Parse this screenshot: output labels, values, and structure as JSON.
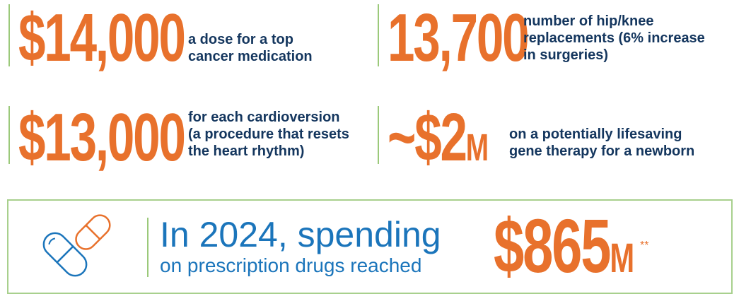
{
  "stats": [
    {
      "value": "$14,000",
      "suffix": "",
      "desc": "a dose for a top\ncancer medication"
    },
    {
      "value": "13,700",
      "suffix": "",
      "desc": "number of hip/knee\nreplacements (6% increase\nin surgeries)"
    },
    {
      "value": "$13,000",
      "suffix": "",
      "desc": "for each cardioversion\n(a procedure that resets\nthe heart rhythm)"
    },
    {
      "value": "~$2",
      "suffix": "M",
      "desc": "on a potentially lifesaving\ngene therapy for a newborn"
    }
  ],
  "callout": {
    "icon": "pill-capsule-icon",
    "line1": "In 2024, spending",
    "line2": "on prescription drugs reached",
    "amount": "$865",
    "amount_suffix": "M",
    "footnote_mark": "**"
  },
  "colors": {
    "orange": "#e8712c",
    "navy": "#14365e",
    "blue": "#1b75bb",
    "green": "#9bc97a"
  }
}
